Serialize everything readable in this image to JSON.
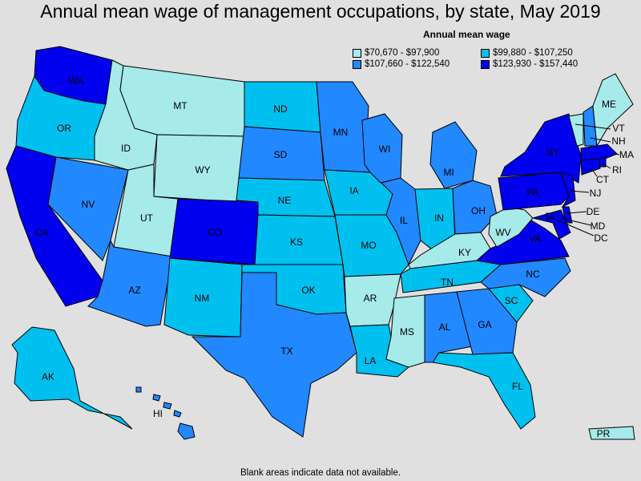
{
  "title": "Annual mean wage of management occupations, by state, May 2019",
  "legend": {
    "title": "Annual mean wage",
    "entries": [
      {
        "label": "$70,670 - $97,900",
        "color": "#a6eaea"
      },
      {
        "label": "$99,880 - $107,250",
        "color": "#00c0f0"
      },
      {
        "label": "$107,660 - $122,540",
        "color": "#2288ff"
      },
      {
        "label": "$123,930 - $157,440",
        "color": "#0000ee"
      }
    ]
  },
  "footnote": "Blank areas indicate data not available.",
  "states": [
    {
      "abbr": "WA",
      "bin": 3
    },
    {
      "abbr": "OR",
      "bin": 1
    },
    {
      "abbr": "CA",
      "bin": 3
    },
    {
      "abbr": "NV",
      "bin": 2
    },
    {
      "abbr": "ID",
      "bin": 0
    },
    {
      "abbr": "MT",
      "bin": 0
    },
    {
      "abbr": "WY",
      "bin": 0
    },
    {
      "abbr": "UT",
      "bin": 0
    },
    {
      "abbr": "AZ",
      "bin": 2
    },
    {
      "abbr": "CO",
      "bin": 3
    },
    {
      "abbr": "NM",
      "bin": 1
    },
    {
      "abbr": "ND",
      "bin": 1
    },
    {
      "abbr": "SD",
      "bin": 2
    },
    {
      "abbr": "NE",
      "bin": 1
    },
    {
      "abbr": "KS",
      "bin": 1
    },
    {
      "abbr": "OK",
      "bin": 1
    },
    {
      "abbr": "TX",
      "bin": 2
    },
    {
      "abbr": "MN",
      "bin": 2
    },
    {
      "abbr": "IA",
      "bin": 1
    },
    {
      "abbr": "MO",
      "bin": 1
    },
    {
      "abbr": "AR",
      "bin": 0
    },
    {
      "abbr": "LA",
      "bin": 1
    },
    {
      "abbr": "WI",
      "bin": 2
    },
    {
      "abbr": "IL",
      "bin": 2
    },
    {
      "abbr": "MI",
      "bin": 2
    },
    {
      "abbr": "IN",
      "bin": 1
    },
    {
      "abbr": "OH",
      "bin": 2
    },
    {
      "abbr": "KY",
      "bin": 0
    },
    {
      "abbr": "TN",
      "bin": 1
    },
    {
      "abbr": "MS",
      "bin": 0
    },
    {
      "abbr": "AL",
      "bin": 2
    },
    {
      "abbr": "GA",
      "bin": 2
    },
    {
      "abbr": "FL",
      "bin": 1
    },
    {
      "abbr": "SC",
      "bin": 1
    },
    {
      "abbr": "NC",
      "bin": 2
    },
    {
      "abbr": "VA",
      "bin": 3
    },
    {
      "abbr": "WV",
      "bin": 0
    },
    {
      "abbr": "PA",
      "bin": 3
    },
    {
      "abbr": "NY",
      "bin": 3
    },
    {
      "abbr": "VT",
      "bin": 0
    },
    {
      "abbr": "NH",
      "bin": 2
    },
    {
      "abbr": "ME",
      "bin": 0
    },
    {
      "abbr": "MA",
      "bin": 3
    },
    {
      "abbr": "RI",
      "bin": 3
    },
    {
      "abbr": "CT",
      "bin": 3
    },
    {
      "abbr": "NJ",
      "bin": 3
    },
    {
      "abbr": "DE",
      "bin": 3
    },
    {
      "abbr": "MD",
      "bin": 3
    },
    {
      "abbr": "DC",
      "bin": 3
    },
    {
      "abbr": "AK",
      "bin": 1
    },
    {
      "abbr": "HI",
      "bin": 2
    },
    {
      "abbr": "PR",
      "bin": 0
    }
  ]
}
